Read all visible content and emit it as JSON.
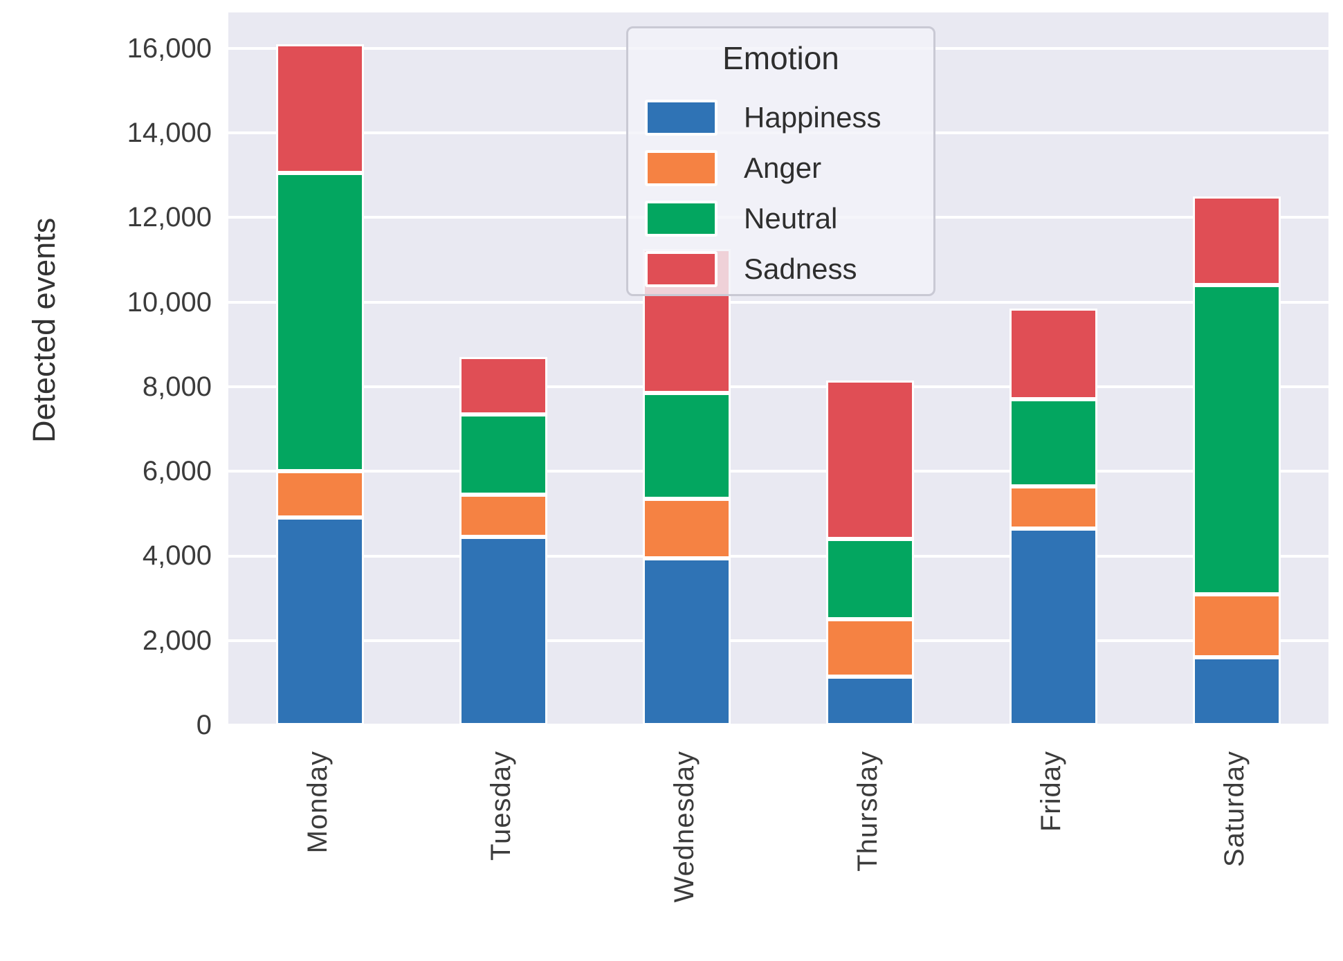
{
  "chart_data": {
    "type": "bar",
    "stacked": true,
    "categories": [
      "Monday",
      "Tuesday",
      "Wednesday",
      "Thursday",
      "Friday",
      "Saturday"
    ],
    "series": [
      {
        "name": "Happiness",
        "color": "#2f73b5",
        "values": [
          4900,
          4450,
          3950,
          1150,
          4650,
          1600
        ]
      },
      {
        "name": "Anger",
        "color": "#f58243",
        "values": [
          1100,
          1000,
          1400,
          1350,
          1000,
          1500
        ]
      },
      {
        "name": "Neutral",
        "color": "#03a660",
        "values": [
          7050,
          1900,
          2500,
          1900,
          2050,
          7300
        ]
      },
      {
        "name": "Sadness",
        "color": "#e04e55",
        "values": [
          3050,
          1350,
          3400,
          3750,
          2150,
          2100
        ]
      }
    ],
    "stack_totals": [
      16100,
      8700,
      11250,
      8150,
      9850,
      12500
    ],
    "title": "",
    "xlabel": "",
    "ylabel": "Detected events",
    "legend_title": "Emotion",
    "legend_position": "upper center",
    "ylim": [
      0,
      16850
    ],
    "yticks": [
      0,
      2000,
      4000,
      6000,
      8000,
      10000,
      12000,
      14000,
      16000
    ],
    "ytick_labels": [
      "0",
      "2,000",
      "4,000",
      "6,000",
      "8,000",
      "10,000",
      "12,000",
      "14,000",
      "16,000"
    ],
    "grid": true,
    "plot_background": "#e9e9f2",
    "gridline_color": "#ffffff",
    "bar_edge_color": "#ffffff"
  }
}
